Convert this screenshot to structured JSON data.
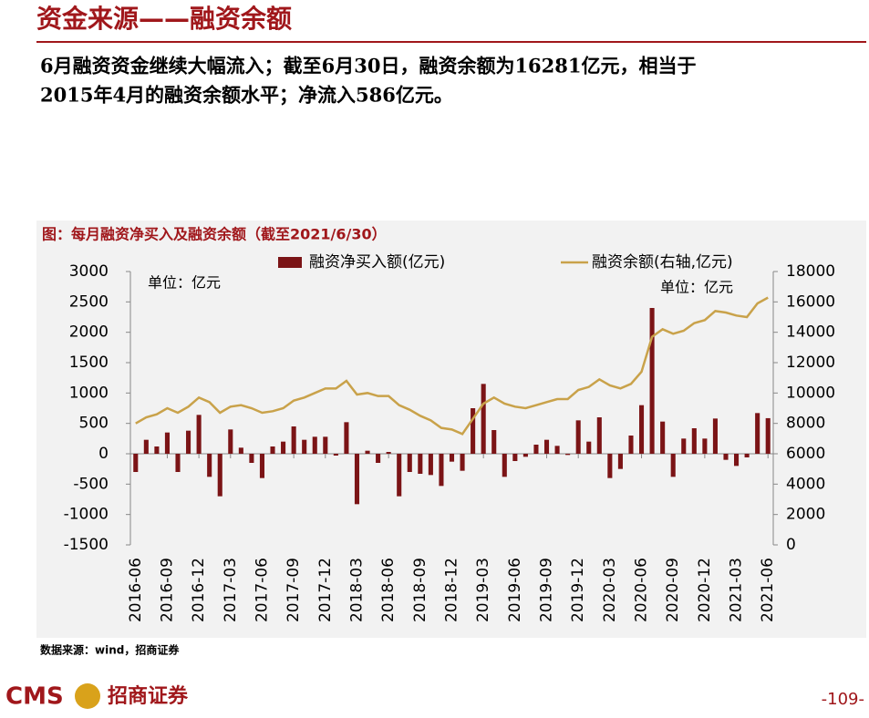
{
  "header": {
    "title": "资金来源——融资余额"
  },
  "body": {
    "lines": [
      "6月融资资金继续大幅流入；截至6月30日，融资余额为16281亿元，相当于",
      "2015年4月的融资余额水平；净流入586亿元。"
    ]
  },
  "chart_data": {
    "type": "bar_line",
    "title": "图：每月融资净买入及融资余额（截至2021/6/30）",
    "annotations": [
      "单位：亿元",
      "单位：亿元"
    ],
    "categories": [
      "2016-06",
      null,
      null,
      "2016-09",
      null,
      null,
      "2016-12",
      null,
      null,
      "2017-03",
      null,
      null,
      "2017-06",
      null,
      null,
      "2017-09",
      null,
      null,
      "2017-12",
      null,
      null,
      "2018-03",
      null,
      null,
      "2018-06",
      null,
      null,
      "2018-09",
      null,
      null,
      "2018-12",
      null,
      null,
      "2019-03",
      null,
      null,
      "2019-06",
      null,
      null,
      "2019-09",
      null,
      null,
      "2019-12",
      null,
      null,
      "2020-03",
      null,
      null,
      "2020-06",
      null,
      null,
      "2020-09",
      null,
      null,
      "2020-12",
      null,
      null,
      "2021-03",
      null,
      null,
      "2021-06"
    ],
    "series": [
      {
        "name": "融资净买入额(亿元)",
        "type": "bar",
        "color": "#7b1416",
        "axis": "y",
        "values": [
          -300,
          230,
          120,
          350,
          -300,
          380,
          640,
          -380,
          -700,
          400,
          100,
          -150,
          -400,
          120,
          200,
          450,
          230,
          280,
          280,
          -30,
          520,
          -830,
          50,
          -150,
          30,
          -700,
          -300,
          -330,
          -350,
          -530,
          -130,
          -280,
          750,
          1150,
          390,
          -380,
          -120,
          -50,
          150,
          230,
          130,
          -20,
          550,
          200,
          600,
          -400,
          -250,
          300,
          800,
          2400,
          530,
          -380,
          250,
          420,
          250,
          580,
          -100,
          -200,
          -60,
          670,
          586
        ]
      },
      {
        "name": "融资余额(右轴,亿元)",
        "type": "line",
        "color": "#c9a24a",
        "axis": "y2",
        "values": [
          8000,
          8400,
          8600,
          9000,
          8700,
          9100,
          9700,
          9400,
          8700,
          9100,
          9200,
          9000,
          8700,
          8800,
          9000,
          9500,
          9700,
          10000,
          10300,
          10300,
          10800,
          9900,
          10000,
          9800,
          9800,
          9200,
          8900,
          8500,
          8200,
          7700,
          7600,
          7300,
          8300,
          9300,
          9700,
          9300,
          9100,
          9000,
          9200,
          9400,
          9600,
          9600,
          10200,
          10400,
          10900,
          10500,
          10300,
          10600,
          11400,
          13700,
          14200,
          13900,
          14100,
          14600,
          14800,
          15400,
          15300,
          15100,
          15000,
          15900,
          16281
        ]
      }
    ],
    "ylim": [
      -1500,
      3000
    ],
    "yticks": [
      -1500,
      -1000,
      -500,
      0,
      500,
      1000,
      1500,
      2000,
      2500,
      3000
    ],
    "y2lim": [
      0,
      18000
    ],
    "y2ticks": [
      0,
      2000,
      4000,
      6000,
      8000,
      10000,
      12000,
      14000,
      16000,
      18000
    ],
    "grid": false
  },
  "source": "数据来源：wind，招商证券",
  "footer": {
    "logo": "CMS",
    "company": "招商证券",
    "page": "-109-"
  }
}
